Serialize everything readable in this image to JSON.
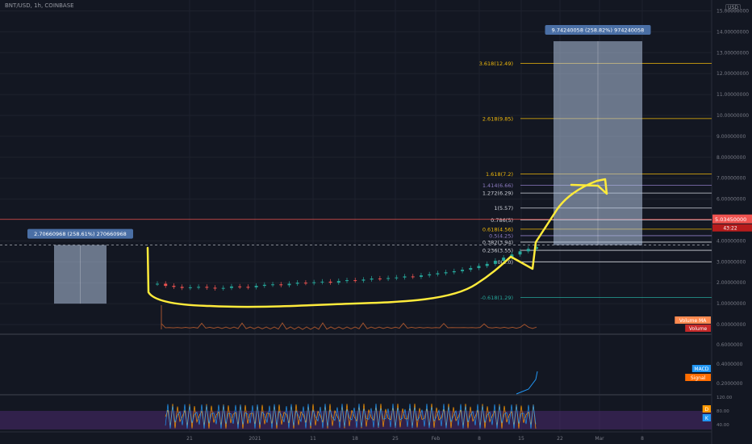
{
  "header": {
    "symbol": "BNT/USD, 1h, COINBASE",
    "currency": "USD"
  },
  "colors": {
    "bg": "#131722",
    "grid": "#1e222d",
    "axis_text": "#787b86",
    "up": "#26a69a",
    "down": "#ef5350",
    "drawing": "#ffeb3b",
    "box_fill": "#b2c4e0",
    "box_label": "#4a6fa5",
    "fib_gold": "#f0b90b",
    "fib_purple": "#8e7cc3",
    "fib_white": "#d1d4dc",
    "fib_teal": "#26a69a",
    "volume_ma": "#a0522d",
    "macd": "#2196f3",
    "signal": "#ff6d00",
    "stoch_fill": "#4a2a6e",
    "stoch_d": "#ff9800",
    "stoch_k": "#2196f3"
  },
  "chart_data": {
    "type": "candlestick",
    "price_axis": {
      "ticks": [
        "15.00000000",
        "14.00000000",
        "13.00000000",
        "12.00000000",
        "11.00000000",
        "10.00000000",
        "9.00000000",
        "8.00000000",
        "7.00000000",
        "6.00000000",
        "4.00000000",
        "3.00000000",
        "2.00000000",
        "1.00000000",
        "0.00000000"
      ],
      "ylim": [
        0,
        15
      ]
    },
    "time_axis": {
      "ticks": [
        "21",
        "2021",
        "11",
        "18",
        "25",
        "Feb",
        "8",
        "15",
        "22",
        "Mar",
        "8"
      ]
    },
    "last_price": {
      "value": "5.03450000",
      "countdown": "43:22"
    },
    "close_series": [
      1.95,
      1.85,
      1.8,
      1.75,
      1.78,
      1.8,
      1.76,
      1.72,
      1.75,
      1.82,
      1.8,
      1.78,
      1.85,
      1.9,
      1.92,
      1.88,
      1.95,
      2.0,
      1.98,
      2.02,
      2.05,
      2.0,
      2.08,
      2.12,
      2.1,
      2.15,
      2.2,
      2.18,
      2.22,
      2.25,
      2.3,
      2.28,
      2.35,
      2.4,
      2.45,
      2.5,
      2.55,
      2.62,
      2.7,
      2.8,
      2.9,
      3.05,
      3.2,
      3.35,
      3.5,
      3.62,
      3.7
    ],
    "fib_levels": [
      {
        "label": "3.618(12.49)",
        "value": 12.49,
        "color": "gold"
      },
      {
        "label": "2.618(9.85)",
        "value": 9.85,
        "color": "gold"
      },
      {
        "label": "1.618(7.2)",
        "value": 7.2,
        "color": "gold"
      },
      {
        "label": "1.414(6.66)",
        "value": 6.66,
        "color": "purple"
      },
      {
        "label": "1.272(6.29)",
        "value": 6.29,
        "color": "white"
      },
      {
        "label": "1(5.57)",
        "value": 5.57,
        "color": "white"
      },
      {
        "label": "0.786(5)",
        "value": 5.0,
        "color": "white"
      },
      {
        "label": "0.618(4.56)",
        "value": 4.56,
        "color": "gold"
      },
      {
        "label": "0.5(4.25)",
        "value": 4.25,
        "color": "purple"
      },
      {
        "label": "0.382(3.94)",
        "value": 3.94,
        "color": "white"
      },
      {
        "label": "0.236(3.55)",
        "value": 3.55,
        "color": "white"
      },
      {
        "label": "0(3.0)",
        "value": 3.0,
        "color": "white"
      },
      {
        "label": "-0.618(1.29)",
        "value": 1.29,
        "color": "teal"
      }
    ],
    "measure_boxes": [
      {
        "label": "2.70660968 (258.61%) 270660968",
        "low": 1.0,
        "high": 3.8
      },
      {
        "label": "9.74240058 (258.82%) 974240058",
        "low": 3.8,
        "high": 13.55
      }
    ],
    "reference_line_value": 3.8,
    "legend_tags": [
      {
        "label": "Volume MA",
        "color": "#ff8a50"
      },
      {
        "label": "Volume",
        "color": "#c62828"
      },
      {
        "label": "MACD",
        "color": "#2196f3"
      },
      {
        "label": "Signal",
        "color": "#ff6d00"
      },
      {
        "label": "D",
        "color": "#ff9800"
      },
      {
        "label": "K",
        "color": "#2196f3"
      }
    ],
    "macd_axis": {
      "ticks": [
        "0.6000000",
        "0.4000000",
        "0.2000000"
      ]
    },
    "stoch_axis": {
      "ticks": [
        "120.00",
        "80.00",
        "40.00"
      ]
    }
  }
}
